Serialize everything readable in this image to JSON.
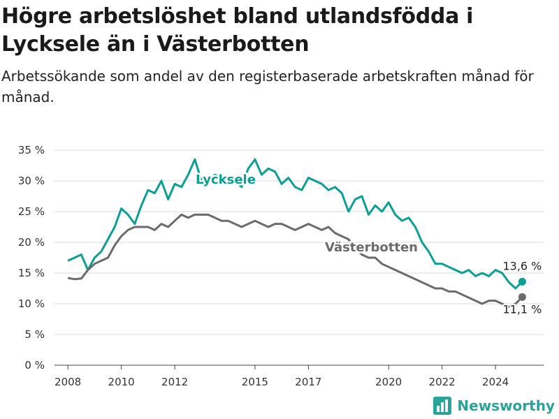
{
  "title": "Högre arbetslöshet bland utlandsfödda i Lycksele än i Västerbotten",
  "subtitle": "Arbetssökande som andel av den registerbaserade arbetskraften månad för månad.",
  "brand": {
    "name": "Newsworthy",
    "icon": "bar-chart-icon"
  },
  "chart_data": {
    "type": "line",
    "title": "Högre arbetslöshet bland utlandsfödda i Lycksele än i Västerbotten",
    "subtitle": "Arbetssökande som andel av den registerbaserade arbetskraften månad för månad.",
    "xlabel": "",
    "ylabel": "",
    "xlim": [
      2007.5,
      2025.8
    ],
    "ylim": [
      0,
      35
    ],
    "y_ticks": [
      0,
      5,
      10,
      15,
      20,
      25,
      30,
      35
    ],
    "y_tick_labels": [
      "0 %",
      "5 %",
      "10 %",
      "15 %",
      "20 %",
      "25 %",
      "30 %",
      "35 %"
    ],
    "x_ticks": [
      2008,
      2010,
      2012,
      2015,
      2017,
      2020,
      2022,
      2024
    ],
    "x_tick_labels": [
      "2008",
      "2010",
      "2012",
      "2015",
      "2017",
      "2020",
      "2022",
      "2024"
    ],
    "grid": "horizontal",
    "legend": "inline labels",
    "series": [
      {
        "name": "Lycksele",
        "color": "#0b9e94",
        "end_label": "13,6 %",
        "x": [
          2008.0,
          2008.25,
          2008.5,
          2008.75,
          2009.0,
          2009.25,
          2009.5,
          2009.75,
          2010.0,
          2010.25,
          2010.5,
          2010.75,
          2011.0,
          2011.25,
          2011.5,
          2011.75,
          2012.0,
          2012.25,
          2012.5,
          2012.75,
          2013.0,
          2013.25,
          2013.5,
          2013.75,
          2014.0,
          2014.25,
          2014.5,
          2014.75,
          2015.0,
          2015.25,
          2015.5,
          2015.75,
          2016.0,
          2016.25,
          2016.5,
          2016.75,
          2017.0,
          2017.25,
          2017.5,
          2017.75,
          2018.0,
          2018.25,
          2018.5,
          2018.75,
          2019.0,
          2019.25,
          2019.5,
          2019.75,
          2020.0,
          2020.25,
          2020.5,
          2020.75,
          2021.0,
          2021.25,
          2021.5,
          2021.75,
          2022.0,
          2022.25,
          2022.5,
          2022.75,
          2023.0,
          2023.25,
          2023.5,
          2023.75,
          2024.0,
          2024.25,
          2024.5,
          2024.75,
          2025.0
        ],
        "y": [
          17.0,
          17.5,
          18.0,
          15.5,
          17.5,
          18.5,
          20.5,
          22.5,
          25.5,
          24.5,
          23.0,
          26.0,
          28.5,
          28.0,
          30.0,
          27.0,
          29.5,
          29.0,
          31.0,
          33.5,
          30.0,
          29.5,
          31.0,
          30.5,
          29.5,
          30.0,
          29.0,
          32.0,
          33.5,
          31.0,
          32.0,
          31.5,
          29.5,
          30.5,
          29.0,
          28.5,
          30.5,
          30.0,
          29.5,
          28.5,
          29.0,
          28.0,
          25.0,
          27.0,
          27.5,
          24.5,
          26.0,
          25.0,
          26.5,
          24.5,
          23.5,
          24.0,
          22.5,
          20.0,
          18.5,
          16.5,
          16.5,
          16.0,
          15.5,
          15.0,
          15.5,
          14.5,
          15.0,
          14.5,
          15.5,
          15.0,
          13.5,
          12.5,
          13.6
        ]
      },
      {
        "name": "Västerbotten",
        "color": "#6b6b6b",
        "end_label": "11,1 %",
        "x": [
          2008.0,
          2008.25,
          2008.5,
          2008.75,
          2009.0,
          2009.25,
          2009.5,
          2009.75,
          2010.0,
          2010.25,
          2010.5,
          2010.75,
          2011.0,
          2011.25,
          2011.5,
          2011.75,
          2012.0,
          2012.25,
          2012.5,
          2012.75,
          2013.0,
          2013.25,
          2013.5,
          2013.75,
          2014.0,
          2014.25,
          2014.5,
          2014.75,
          2015.0,
          2015.25,
          2015.5,
          2015.75,
          2016.0,
          2016.25,
          2016.5,
          2016.75,
          2017.0,
          2017.25,
          2017.5,
          2017.75,
          2018.0,
          2018.25,
          2018.5,
          2018.75,
          2019.0,
          2019.25,
          2019.5,
          2019.75,
          2020.0,
          2020.25,
          2020.5,
          2020.75,
          2021.0,
          2021.25,
          2021.5,
          2021.75,
          2022.0,
          2022.25,
          2022.5,
          2022.75,
          2023.0,
          2023.25,
          2023.5,
          2023.75,
          2024.0,
          2024.25,
          2024.5,
          2024.75,
          2025.0
        ],
        "y": [
          14.2,
          14.0,
          14.1,
          15.5,
          16.5,
          17.0,
          17.5,
          19.5,
          21.0,
          22.0,
          22.5,
          22.5,
          22.5,
          22.0,
          23.0,
          22.5,
          23.5,
          24.5,
          24.0,
          24.5,
          24.5,
          24.5,
          24.0,
          23.5,
          23.5,
          23.0,
          22.5,
          23.0,
          23.5,
          23.0,
          22.5,
          23.0,
          23.0,
          22.5,
          22.0,
          22.5,
          23.0,
          22.5,
          22.0,
          22.5,
          21.5,
          21.0,
          20.5,
          19.0,
          18.0,
          17.5,
          17.5,
          16.5,
          16.0,
          15.5,
          15.0,
          14.5,
          14.0,
          13.5,
          13.0,
          12.5,
          12.5,
          12.0,
          12.0,
          11.5,
          11.0,
          10.5,
          10.0,
          10.5,
          10.5,
          10.0,
          9.5,
          10.0,
          11.1
        ]
      }
    ]
  }
}
